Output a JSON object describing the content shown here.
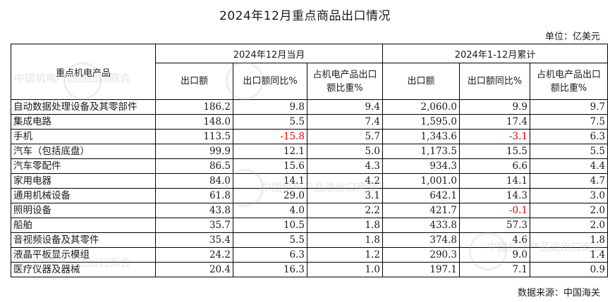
{
  "title": "2024年12月重点商品出口情况",
  "unit": "单位：亿美元",
  "source": "数据来源：中国海关",
  "watermark": "中国机电产品进出口商会",
  "header": {
    "product": "重点机电产品",
    "group1": "2024年12月当月",
    "group2": "2024年1-12月累计",
    "cols": [
      "出口额",
      "出口额同比%",
      "占机电产品出口额比重%",
      "出口额",
      "出口额同比%",
      "占机电产品出口额比重%"
    ]
  },
  "rows": [
    {
      "name": "自动数据处理设备及其零部件",
      "m_val": "186.2",
      "m_yoy": "9.8",
      "m_share": "9.4",
      "y_val": "2,060.0",
      "y_yoy": "9.9",
      "y_share": "9.7"
    },
    {
      "name": "集成电路",
      "m_val": "148.0",
      "m_yoy": "5.5",
      "m_share": "7.4",
      "y_val": "1,595.0",
      "y_yoy": "17.4",
      "y_share": "7.5"
    },
    {
      "name": "手机",
      "m_val": "113.5",
      "m_yoy": "-15.8",
      "m_share": "5.7",
      "y_val": "1,343.6",
      "y_yoy": "-3.1",
      "y_share": "6.3"
    },
    {
      "name": "汽车（包括底盘）",
      "m_val": "99.9",
      "m_yoy": "12.1",
      "m_share": "5.0",
      "y_val": "1,173.5",
      "y_yoy": "15.5",
      "y_share": "5.5"
    },
    {
      "name": "汽车零配件",
      "m_val": "86.5",
      "m_yoy": "15.6",
      "m_share": "4.3",
      "y_val": "934.3",
      "y_yoy": "6.6",
      "y_share": "4.4"
    },
    {
      "name": "家用电器",
      "m_val": "84.0",
      "m_yoy": "14.1",
      "m_share": "4.2",
      "y_val": "1,001.0",
      "y_yoy": "14.1",
      "y_share": "4.7"
    },
    {
      "name": "通用机械设备",
      "m_val": "61.8",
      "m_yoy": "29.0",
      "m_share": "3.1",
      "y_val": "642.1",
      "y_yoy": "14.3",
      "y_share": "3.0"
    },
    {
      "name": "照明设备",
      "m_val": "43.8",
      "m_yoy": "4.0",
      "m_share": "2.2",
      "y_val": "421.7",
      "y_yoy": "-0.1",
      "y_share": "2.0"
    },
    {
      "name": "船舶",
      "m_val": "35.7",
      "m_yoy": "10.5",
      "m_share": "1.8",
      "y_val": "433.8",
      "y_yoy": "57.3",
      "y_share": "2.0"
    },
    {
      "name": "音视频设备及其零件",
      "m_val": "35.4",
      "m_yoy": "5.5",
      "m_share": "1.8",
      "y_val": "374.8",
      "y_yoy": "4.6",
      "y_share": "1.8"
    },
    {
      "name": "液晶平板显示模组",
      "m_val": "24.2",
      "m_yoy": "6.3",
      "m_share": "1.2",
      "y_val": "290.3",
      "y_yoy": "9.0",
      "y_share": "1.4"
    },
    {
      "name": "医疗仪器及器械",
      "m_val": "20.4",
      "m_yoy": "16.3",
      "m_share": "1.0",
      "y_val": "197.1",
      "y_yoy": "7.1",
      "y_share": "0.9"
    }
  ]
}
